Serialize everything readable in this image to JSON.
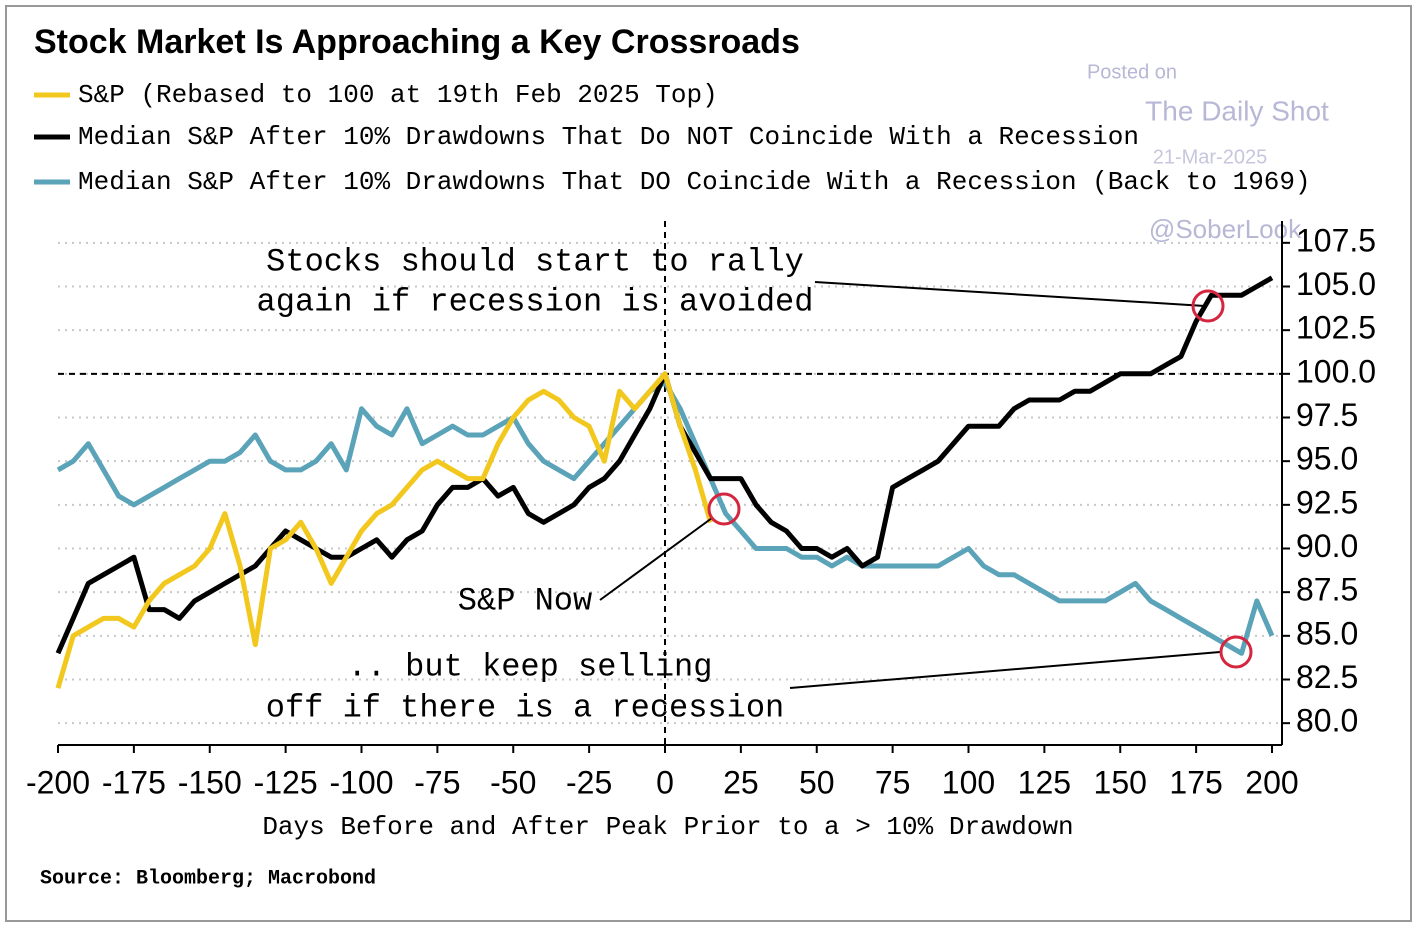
{
  "chart_data": {
    "type": "line",
    "title": "Stock Market Is Approaching a Key Crossroads",
    "x_label": "Days Before and After Peak Prior to a > 10% Drawdown",
    "source": "Source: Bloomberg; Macrobond",
    "watermark": [
      "Posted on",
      "The Daily Shot",
      "21-Mar-2025",
      "@SoberLook"
    ],
    "annotations": [
      "Stocks should start to rally",
      "again if recession is avoided",
      "S&P Now",
      ".. but keep selling",
      "off if there is a recession"
    ],
    "xlim": [
      -200,
      200
    ],
    "xticks": [
      -200,
      -175,
      -150,
      -125,
      -100,
      -75,
      -50,
      -25,
      0,
      25,
      50,
      75,
      100,
      125,
      150,
      175,
      200
    ],
    "ylim": [
      78.75,
      108.75
    ],
    "yticks": [
      {
        "value": 80,
        "label": "80.0"
      },
      82.5,
      {
        "value": 85,
        "label": "85.0"
      },
      87.5,
      {
        "value": 90,
        "label": "90.0"
      },
      92.5,
      {
        "value": 95,
        "label": "95.0"
      },
      97.5,
      {
        "value": 100,
        "label": "100.0"
      },
      102.5,
      {
        "value": 105,
        "label": "105.0"
      },
      107.5
    ],
    "grid": true,
    "hline": 100,
    "vline": 0,
    "x": [
      -200,
      -195,
      -190,
      -185,
      -180,
      -175,
      -170,
      -165,
      -160,
      -155,
      -150,
      -145,
      -140,
      -135,
      -130,
      -125,
      -120,
      -115,
      -110,
      -105,
      -100,
      -95,
      -90,
      -85,
      -80,
      -75,
      -70,
      -65,
      -60,
      -55,
      -50,
      -45,
      -40,
      -35,
      -30,
      -25,
      -20,
      -15,
      -10,
      -5,
      0,
      5,
      10,
      15,
      20,
      25,
      30,
      35,
      40,
      45,
      50,
      55,
      60,
      65,
      70,
      75,
      80,
      85,
      90,
      95,
      100,
      105,
      110,
      115,
      120,
      125,
      130,
      135,
      140,
      145,
      150,
      155,
      160,
      165,
      170,
      175,
      180,
      185,
      190,
      195,
      200
    ],
    "series": [
      {
        "name": "S&P (Rebased to 100 at 19th Feb 2025 Top)",
        "color": "#f2c81e",
        "values": [
          82,
          85,
          85.5,
          86,
          86,
          85.5,
          87,
          88,
          88.5,
          89,
          90,
          92,
          89,
          84.5,
          90,
          90.5,
          91.5,
          90,
          88,
          89.5,
          91,
          92,
          92.5,
          93.5,
          94.5,
          95,
          94.5,
          94,
          94,
          96,
          97.5,
          98.5,
          99,
          98.5,
          97.5,
          97,
          95,
          99,
          98,
          99,
          100,
          97,
          94.5,
          91.5,
          null,
          null,
          null,
          null,
          null,
          null,
          null,
          null,
          null,
          null,
          null,
          null,
          null,
          null,
          null,
          null,
          null,
          null,
          null,
          null,
          null,
          null,
          null,
          null,
          null,
          null,
          null,
          null,
          null,
          null,
          null,
          null,
          null,
          null,
          null,
          null,
          null
        ]
      },
      {
        "name": "Median S&P After 10% Drawdowns That Do NOT Coincide With a Recession",
        "color": "#000000",
        "values": [
          84,
          86,
          88,
          88.5,
          89,
          89.5,
          86.5,
          86.5,
          86,
          87,
          87.5,
          88,
          88.5,
          89,
          90,
          91,
          90.5,
          90,
          89.5,
          89.5,
          90,
          90.5,
          89.5,
          90.5,
          91,
          92.5,
          93.5,
          93.5,
          94,
          93,
          93.5,
          92,
          91.5,
          92,
          92.5,
          93.5,
          94,
          95,
          96.5,
          98,
          100,
          97,
          95.5,
          94,
          94,
          94,
          92.5,
          91.5,
          91,
          90,
          90,
          89.5,
          90,
          89,
          89.5,
          93.5,
          94,
          94.5,
          95,
          96,
          97,
          97,
          97,
          98,
          98.5,
          98.5,
          98.5,
          99,
          99,
          99.5,
          100,
          100,
          100,
          100.5,
          101,
          103,
          104.5,
          104.5,
          104.5,
          105,
          105.5
        ]
      },
      {
        "name": "Median S&P After 10% Drawdowns That DO Coincide With a Recession (Back to 1969)",
        "color": "#5ba3b8",
        "values": [
          94.5,
          95,
          96,
          94.5,
          93,
          92.5,
          93,
          93.5,
          94,
          94.5,
          95,
          95,
          95.5,
          96.5,
          95,
          94.5,
          94.5,
          95,
          96,
          94.5,
          98,
          97,
          96.5,
          98,
          96,
          96.5,
          97,
          96.5,
          96.5,
          97,
          97.5,
          96,
          95,
          94.5,
          94,
          95,
          96,
          97,
          98,
          99,
          99.5,
          98,
          96,
          94,
          92,
          91,
          90,
          90,
          90,
          89.5,
          89.5,
          89,
          89.5,
          89,
          89,
          89,
          89,
          89,
          89,
          89.5,
          90,
          89,
          88.5,
          88.5,
          88,
          87.5,
          87,
          87,
          87,
          87,
          87.5,
          88,
          87,
          86.5,
          86,
          85.5,
          85,
          84.5,
          84,
          87,
          85
        ]
      }
    ]
  }
}
